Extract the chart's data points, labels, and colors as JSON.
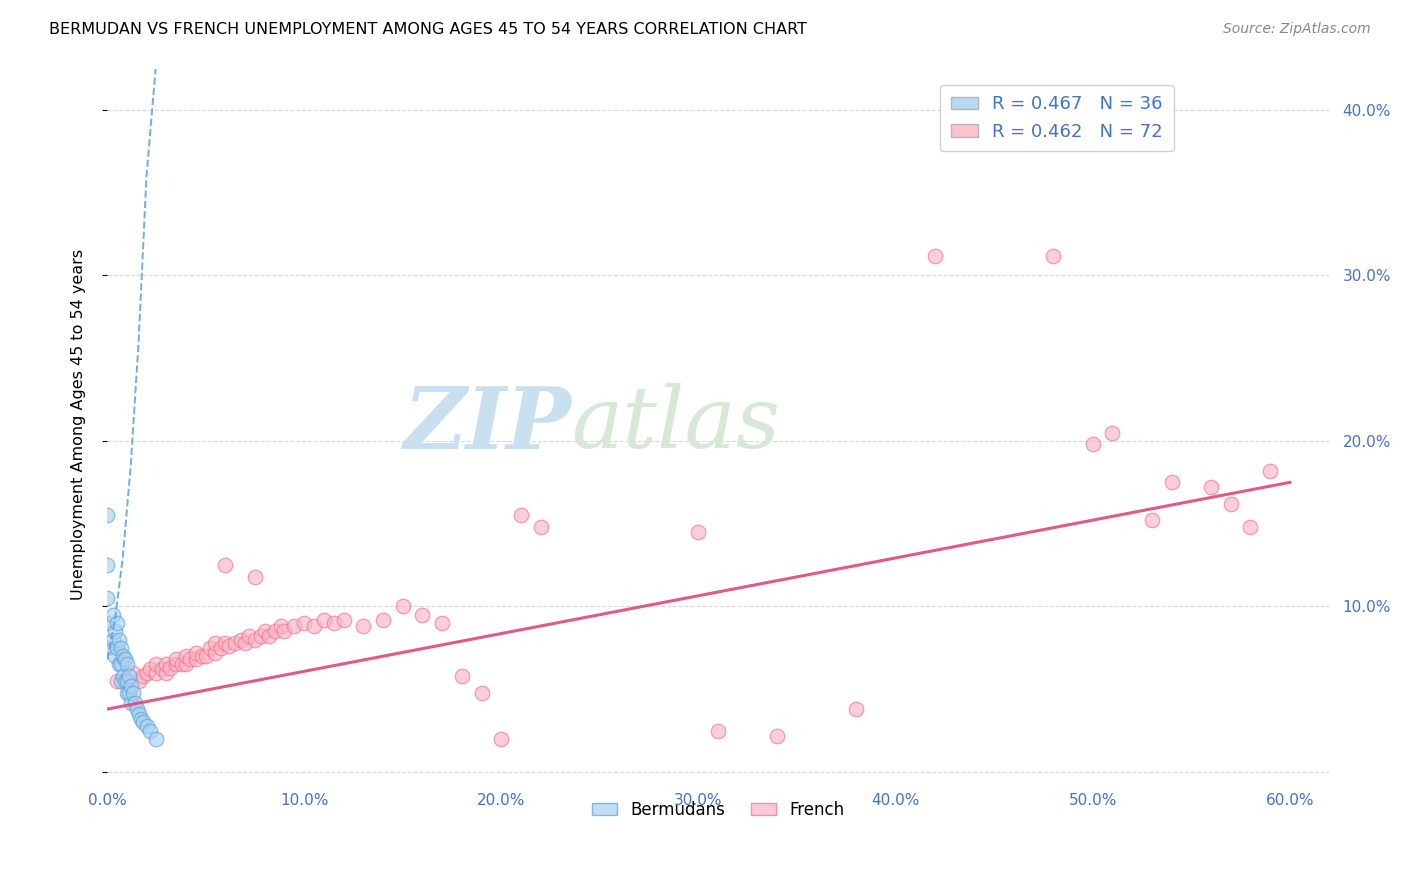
{
  "title": "BERMUDAN VS FRENCH UNEMPLOYMENT AMONG AGES 45 TO 54 YEARS CORRELATION CHART",
  "source": "Source: ZipAtlas.com",
  "ylabel": "Unemployment Among Ages 45 to 54 years",
  "xlim": [
    0.0,
    0.62
  ],
  "ylim": [
    -0.005,
    0.425
  ],
  "x_tick_vals": [
    0.0,
    0.1,
    0.2,
    0.3,
    0.4,
    0.5,
    0.6
  ],
  "x_tick_labels": [
    "0.0%",
    "10.0%",
    "20.0%",
    "30.0%",
    "40.0%",
    "50.0%",
    "60.0%"
  ],
  "y_tick_vals": [
    0.0,
    0.1,
    0.2,
    0.3,
    0.4
  ],
  "y_tick_labels": [
    "",
    "10.0%",
    "20.0%",
    "30.0%",
    "40.0%"
  ],
  "bermuda_fill": "#a8d0f0",
  "bermuda_edge": "#5b9fd4",
  "french_fill": "#fbb4c5",
  "french_edge": "#f07090",
  "bermuda_trend_color": "#5b9fd4",
  "french_trend_color": "#e05080",
  "tick_color": "#4472c4",
  "grid_color": "#d8d8d8",
  "watermark_zip_color": "#c8dff0",
  "watermark_atlas_color": "#d8e8d8",
  "bermuda_x": [
    0.0,
    0.0,
    0.0,
    0.0,
    0.0,
    0.003,
    0.003,
    0.004,
    0.004,
    0.005,
    0.005,
    0.006,
    0.006,
    0.007,
    0.007,
    0.007,
    0.008,
    0.008,
    0.009,
    0.009,
    0.01,
    0.01,
    0.01,
    0.011,
    0.011,
    0.012,
    0.012,
    0.013,
    0.014,
    0.015,
    0.016,
    0.017,
    0.018,
    0.02,
    0.022,
    0.025
  ],
  "bermuda_y": [
    0.155,
    0.125,
    0.105,
    0.09,
    0.075,
    0.095,
    0.08,
    0.085,
    0.07,
    0.09,
    0.075,
    0.08,
    0.065,
    0.075,
    0.065,
    0.055,
    0.07,
    0.058,
    0.068,
    0.055,
    0.065,
    0.055,
    0.048,
    0.058,
    0.048,
    0.052,
    0.042,
    0.048,
    0.042,
    0.038,
    0.035,
    0.032,
    0.03,
    0.028,
    0.025,
    0.02
  ],
  "french_x": [
    0.005,
    0.01,
    0.013,
    0.016,
    0.018,
    0.02,
    0.022,
    0.025,
    0.025,
    0.028,
    0.03,
    0.03,
    0.032,
    0.035,
    0.035,
    0.038,
    0.04,
    0.04,
    0.042,
    0.045,
    0.045,
    0.048,
    0.05,
    0.052,
    0.055,
    0.055,
    0.058,
    0.06,
    0.062,
    0.065,
    0.068,
    0.07,
    0.072,
    0.075,
    0.078,
    0.08,
    0.082,
    0.085,
    0.088,
    0.09,
    0.095,
    0.1,
    0.105,
    0.11,
    0.115,
    0.12,
    0.13,
    0.14,
    0.15,
    0.16,
    0.17,
    0.18,
    0.19,
    0.2,
    0.21,
    0.22,
    0.3,
    0.31,
    0.34,
    0.38,
    0.42,
    0.48,
    0.5,
    0.51,
    0.53,
    0.54,
    0.56,
    0.57,
    0.58,
    0.59,
    0.06,
    0.075
  ],
  "french_y": [
    0.055,
    0.055,
    0.06,
    0.055,
    0.058,
    0.06,
    0.062,
    0.06,
    0.065,
    0.062,
    0.06,
    0.065,
    0.063,
    0.065,
    0.068,
    0.065,
    0.065,
    0.07,
    0.068,
    0.068,
    0.072,
    0.07,
    0.07,
    0.075,
    0.072,
    0.078,
    0.075,
    0.078,
    0.076,
    0.078,
    0.08,
    0.078,
    0.082,
    0.08,
    0.082,
    0.085,
    0.082,
    0.085,
    0.088,
    0.085,
    0.088,
    0.09,
    0.088,
    0.092,
    0.09,
    0.092,
    0.088,
    0.092,
    0.1,
    0.095,
    0.09,
    0.058,
    0.048,
    0.02,
    0.155,
    0.148,
    0.145,
    0.025,
    0.022,
    0.038,
    0.312,
    0.312,
    0.198,
    0.205,
    0.152,
    0.175,
    0.172,
    0.162,
    0.148,
    0.182,
    0.125,
    0.118
  ],
  "bermuda_trend_x": [
    0.0,
    0.004,
    0.008,
    0.012,
    0.016,
    0.02,
    0.025
  ],
  "bermuda_trend_y": [
    0.068,
    0.092,
    0.13,
    0.185,
    0.26,
    0.36,
    0.43
  ],
  "french_trend_x": [
    0.0,
    0.6
  ],
  "french_trend_y": [
    0.038,
    0.175
  ]
}
